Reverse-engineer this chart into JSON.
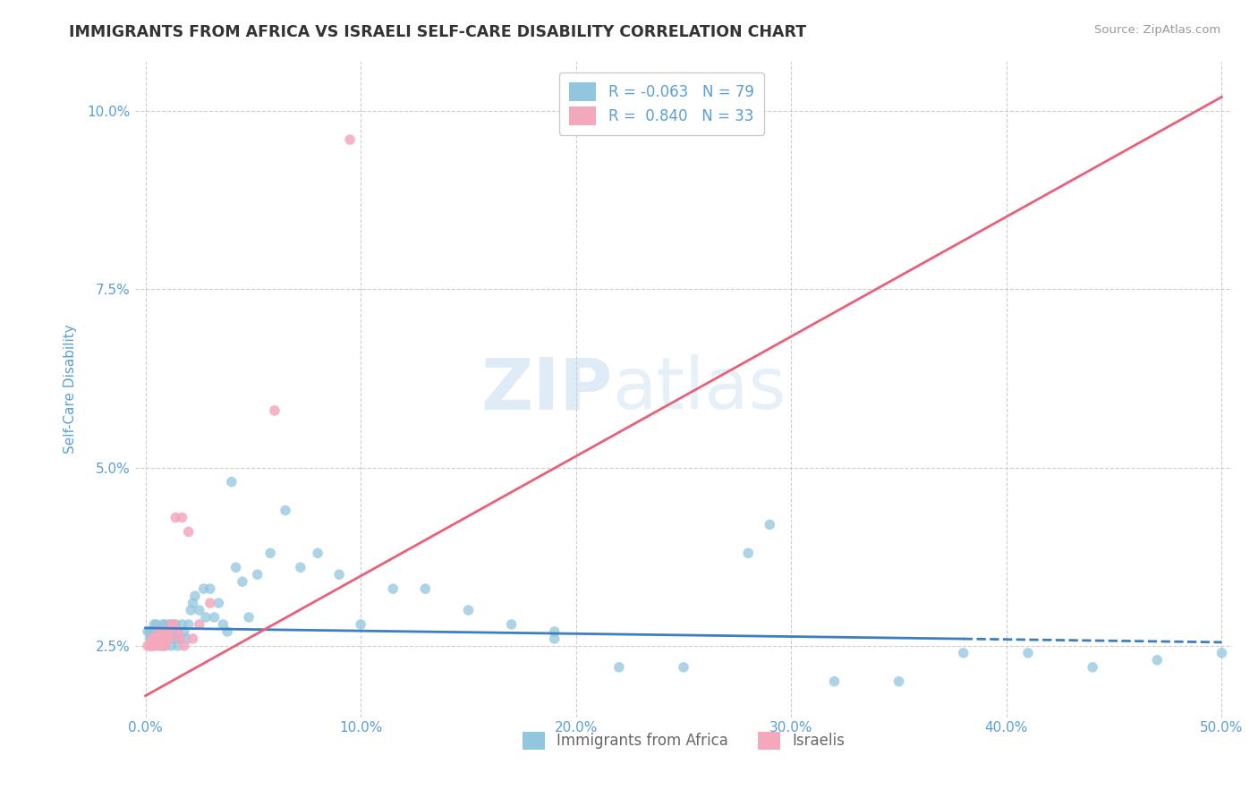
{
  "title": "IMMIGRANTS FROM AFRICA VS ISRAELI SELF-CARE DISABILITY CORRELATION CHART",
  "source": "Source: ZipAtlas.com",
  "xlabel": "",
  "ylabel": "Self-Care Disability",
  "xlim": [
    -0.005,
    0.505
  ],
  "ylim": [
    0.015,
    0.107
  ],
  "yticks": [
    0.025,
    0.05,
    0.075,
    0.1
  ],
  "ytick_labels": [
    "2.5%",
    "5.0%",
    "7.5%",
    "10.0%"
  ],
  "xticks": [
    0.0,
    0.1,
    0.2,
    0.3,
    0.4,
    0.5
  ],
  "xtick_labels": [
    "0.0%",
    "10.0%",
    "20.0%",
    "30.0%",
    "40.0%",
    "50.0%"
  ],
  "legend_r_blue": "-0.063",
  "legend_n_blue": "79",
  "legend_r_pink": "0.840",
  "legend_n_pink": "33",
  "blue_color": "#92c5de",
  "pink_color": "#f4a8bc",
  "blue_line_color": "#3d7ebf",
  "pink_line_color": "#e8607a",
  "watermark_zip": "ZIP",
  "watermark_atlas": "atlas",
  "background_color": "#ffffff",
  "grid_color": "#c8c8c8",
  "title_color": "#333333",
  "tick_color": "#5a9fd4",
  "blue_scatter_x": [
    0.001,
    0.002,
    0.002,
    0.003,
    0.003,
    0.003,
    0.004,
    0.004,
    0.004,
    0.005,
    0.005,
    0.005,
    0.006,
    0.006,
    0.006,
    0.007,
    0.007,
    0.007,
    0.008,
    0.008,
    0.008,
    0.009,
    0.009,
    0.01,
    0.01,
    0.011,
    0.011,
    0.012,
    0.012,
    0.013,
    0.013,
    0.014,
    0.014,
    0.015,
    0.015,
    0.016,
    0.017,
    0.018,
    0.019,
    0.02,
    0.021,
    0.022,
    0.023,
    0.025,
    0.027,
    0.028,
    0.03,
    0.032,
    0.034,
    0.036,
    0.038,
    0.04,
    0.042,
    0.045,
    0.048,
    0.052,
    0.058,
    0.065,
    0.072,
    0.08,
    0.09,
    0.1,
    0.115,
    0.13,
    0.15,
    0.17,
    0.19,
    0.22,
    0.25,
    0.28,
    0.32,
    0.35,
    0.38,
    0.41,
    0.44,
    0.47,
    0.5,
    0.29,
    0.19
  ],
  "blue_scatter_y": [
    0.027,
    0.026,
    0.027,
    0.025,
    0.026,
    0.027,
    0.026,
    0.027,
    0.028,
    0.027,
    0.026,
    0.028,
    0.026,
    0.027,
    0.025,
    0.027,
    0.026,
    0.027,
    0.026,
    0.027,
    0.028,
    0.025,
    0.028,
    0.026,
    0.027,
    0.026,
    0.028,
    0.025,
    0.027,
    0.026,
    0.027,
    0.026,
    0.028,
    0.025,
    0.027,
    0.026,
    0.028,
    0.027,
    0.026,
    0.028,
    0.03,
    0.031,
    0.032,
    0.03,
    0.033,
    0.029,
    0.033,
    0.029,
    0.031,
    0.028,
    0.027,
    0.048,
    0.036,
    0.034,
    0.029,
    0.035,
    0.038,
    0.044,
    0.036,
    0.038,
    0.035,
    0.028,
    0.033,
    0.033,
    0.03,
    0.028,
    0.026,
    0.022,
    0.022,
    0.038,
    0.02,
    0.02,
    0.024,
    0.024,
    0.022,
    0.023,
    0.024,
    0.042,
    0.027
  ],
  "pink_scatter_x": [
    0.001,
    0.002,
    0.003,
    0.003,
    0.004,
    0.004,
    0.005,
    0.005,
    0.006,
    0.006,
    0.007,
    0.007,
    0.008,
    0.008,
    0.009,
    0.009,
    0.01,
    0.01,
    0.011,
    0.011,
    0.012,
    0.013,
    0.014,
    0.015,
    0.016,
    0.017,
    0.018,
    0.02,
    0.022,
    0.025,
    0.03,
    0.06,
    0.095
  ],
  "pink_scatter_y": [
    0.025,
    0.025,
    0.026,
    0.025,
    0.025,
    0.026,
    0.026,
    0.026,
    0.027,
    0.026,
    0.025,
    0.026,
    0.025,
    0.027,
    0.026,
    0.025,
    0.026,
    0.027,
    0.026,
    0.027,
    0.028,
    0.028,
    0.043,
    0.027,
    0.026,
    0.043,
    0.025,
    0.041,
    0.026,
    0.028,
    0.031,
    0.058,
    0.096
  ],
  "pink_line_x0": 0.0,
  "pink_line_y0": 0.018,
  "pink_line_x1": 0.5,
  "pink_line_y1": 0.102,
  "blue_line_x0": 0.0,
  "blue_line_y0": 0.0275,
  "blue_line_x1": 0.5,
  "blue_line_y1": 0.0255
}
